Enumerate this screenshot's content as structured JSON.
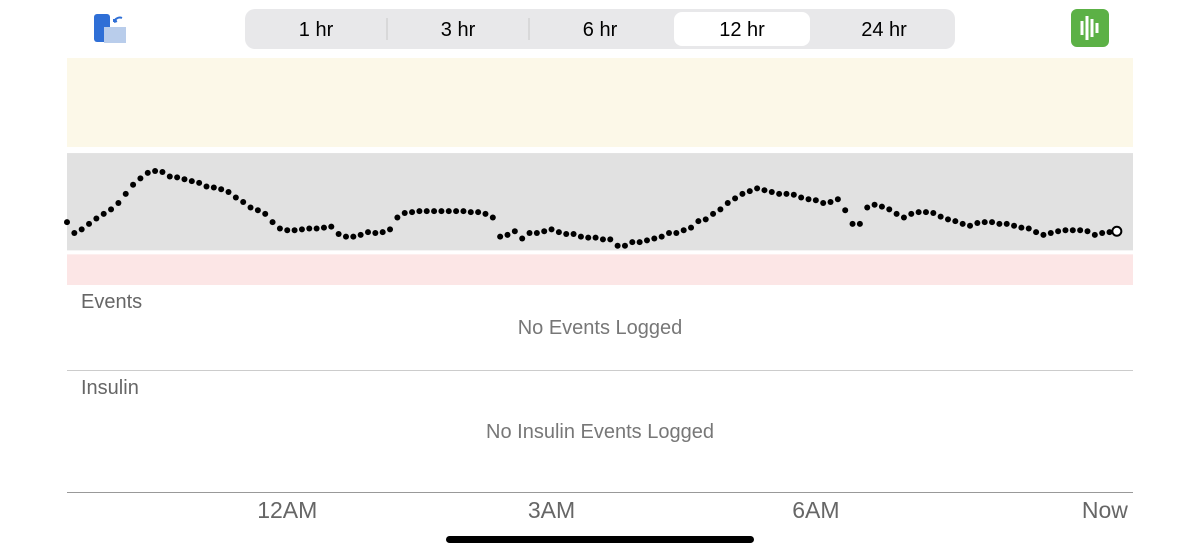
{
  "toolbar": {
    "segments": [
      "1 hr",
      "3 hr",
      "6 hr",
      "12 hr",
      "24 hr"
    ],
    "selected_index": 3
  },
  "chart_data": {
    "type": "scatter",
    "color": "#000000",
    "x": [
      -150,
      -145,
      -140,
      -135,
      -130,
      -125,
      -120,
      -115,
      -110,
      -105,
      -100,
      -95,
      -90,
      -85,
      -80,
      -75,
      -70,
      -65,
      -60,
      -55,
      -50,
      -45,
      -40,
      -35,
      -30,
      -25,
      -20,
      -15,
      -10,
      -5,
      0,
      5,
      10,
      15,
      20,
      25,
      30,
      35,
      40,
      45,
      50,
      55,
      60,
      65,
      70,
      75,
      80,
      85,
      90,
      95,
      100,
      105,
      110,
      115,
      120,
      125,
      130,
      135,
      140,
      145,
      150,
      155,
      160,
      165,
      170,
      175,
      180,
      185,
      190,
      195,
      200,
      205,
      210,
      215,
      220,
      225,
      230,
      235,
      240,
      245,
      250,
      255,
      260,
      265,
      270,
      275,
      280,
      285,
      290,
      295,
      300,
      305,
      310,
      315,
      320,
      325,
      330,
      335,
      340,
      345,
      350,
      355,
      360,
      365,
      370,
      375,
      380,
      385,
      390,
      395,
      400,
      405,
      410,
      415,
      420,
      425,
      430,
      435,
      440,
      445,
      450,
      455,
      460,
      465,
      470,
      475,
      480,
      485,
      490,
      495,
      500,
      505,
      510,
      515,
      520,
      525,
      530,
      535,
      540,
      545,
      550,
      555,
      560,
      565
    ],
    "values": [
      101,
      89,
      93,
      99,
      105,
      110,
      115,
      122,
      132,
      142,
      149,
      155,
      157,
      156,
      151,
      150,
      148,
      146,
      144,
      140,
      139,
      137,
      134,
      128,
      123,
      117,
      114,
      110,
      101,
      94,
      92,
      92,
      93,
      94,
      94,
      95,
      96,
      88,
      85,
      85,
      87,
      90,
      89,
      90,
      93,
      106,
      111,
      112,
      113,
      113,
      113,
      113,
      113,
      113,
      113,
      112,
      112,
      110,
      106,
      85,
      87,
      91,
      83,
      89,
      89,
      91,
      93,
      90,
      88,
      88,
      85,
      84,
      84,
      82,
      82,
      75,
      75,
      79,
      79,
      81,
      83,
      85,
      89,
      89,
      92,
      95,
      102,
      104,
      110,
      115,
      122,
      127,
      132,
      135,
      138,
      136,
      134,
      132,
      132,
      131,
      128,
      126,
      125,
      122,
      123,
      126,
      114,
      99,
      99,
      117,
      120,
      118,
      115,
      110,
      106,
      110,
      112,
      112,
      111,
      107,
      104,
      102,
      99,
      97,
      100,
      101,
      101,
      99,
      99,
      97,
      95,
      94,
      90,
      87,
      89,
      91,
      92,
      92,
      92,
      91,
      87,
      89,
      90,
      91
    ],
    "xlim": [
      -150,
      576
    ],
    "ylim": [
      32,
      281
    ],
    "target_range": [
      70,
      180
    ],
    "xticks": [
      {
        "value": 0,
        "label": "12AM"
      },
      {
        "value": 180,
        "label": "3AM"
      },
      {
        "value": 360,
        "label": "6AM"
      },
      {
        "value": 565,
        "label": "Now"
      }
    ]
  },
  "events": {
    "title": "Events",
    "empty": "No Events Logged"
  },
  "insulin": {
    "title": "Insulin",
    "empty": "No Insulin Events Logged"
  }
}
